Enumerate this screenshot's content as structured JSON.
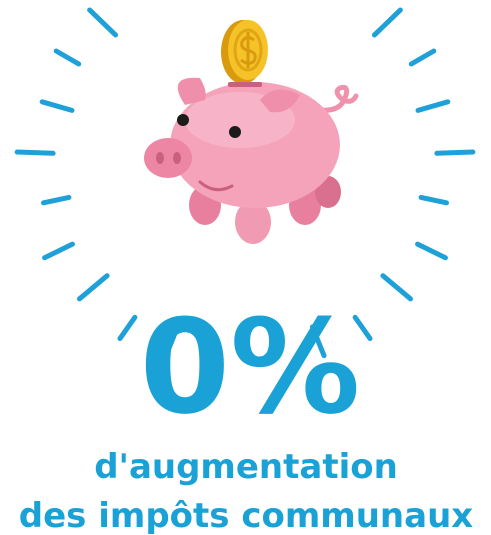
{
  "headline": "0%",
  "subtitle": {
    "line1": "d'augmentation",
    "line2": "des impôts communaux"
  }
}
